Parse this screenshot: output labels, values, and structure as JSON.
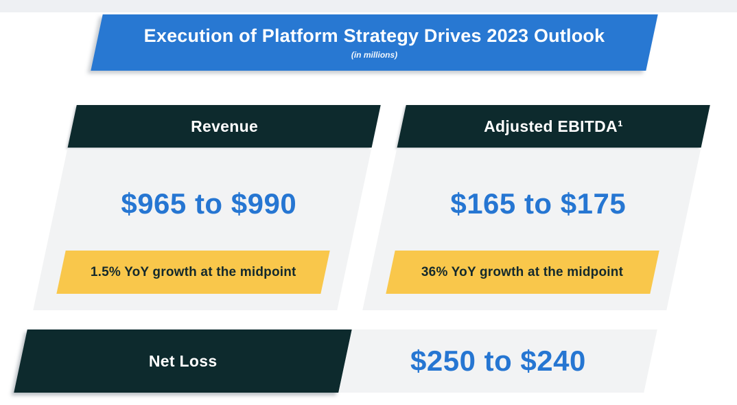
{
  "banner": {
    "title": "Execution of Platform Strategy Drives 2023 Outlook",
    "subtitle": "(in millions)"
  },
  "cards": [
    {
      "header": "Revenue",
      "value": "$965 to $990",
      "badge": "1.5% YoY growth at the midpoint"
    },
    {
      "header": "Adjusted EBITDA¹",
      "value": "$165 to $175",
      "badge": "36% YoY growth at the midpoint"
    }
  ],
  "bottom_row": {
    "label": "Net Loss",
    "value": "$250 to $240"
  },
  "colors": {
    "banner_blue": "#2878D2",
    "header_dark": "#0D2A2D",
    "value_blue": "#2676D2",
    "badge_yellow": "#F9C74B",
    "badge_text": "#14292C",
    "body_gray": "#F2F3F4",
    "strip_gray": "#EEF0F3"
  }
}
